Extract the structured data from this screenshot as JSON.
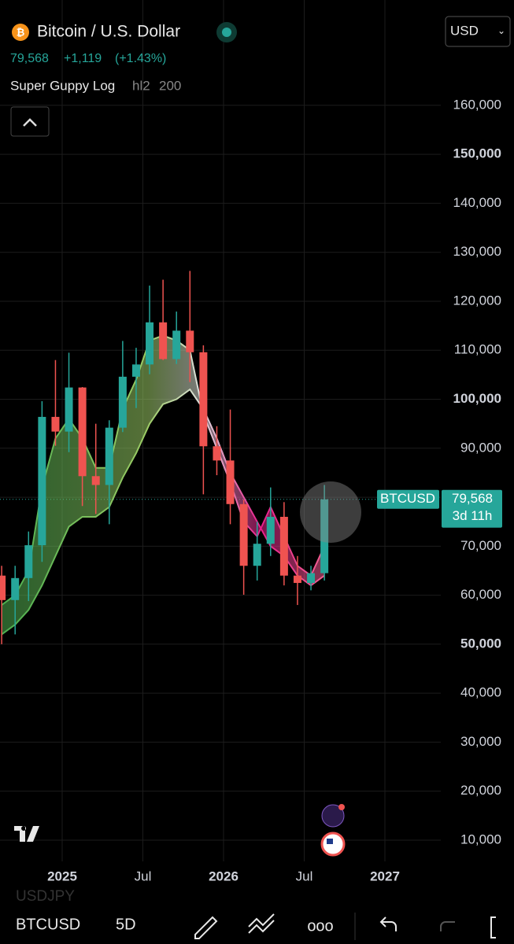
{
  "header": {
    "title": "Bitcoin / U.S. Dollar",
    "price": "79,568",
    "change": "+1,119",
    "change_pct": "(+1.43%)",
    "indicator": "Super Guppy Log",
    "indicator_source": "hl2",
    "indicator_length": "200",
    "currency": "USD"
  },
  "toolbar": {
    "symbol": "BTCUSD",
    "interval": "5D",
    "ghost_symbol": "USDJPY"
  },
  "chart_data": {
    "type": "candlestick",
    "x": [
      "2024-08",
      "2024-09",
      "2024-10",
      "2024-11",
      "2024-12",
      "2025-01",
      "2025-02",
      "2025-03",
      "2025-04",
      "2025-05",
      "2025-06",
      "2025-07",
      "2025-08",
      "2025-09",
      "2025-10",
      "2025-11",
      "2025-12",
      "2026-01",
      "2026-02",
      "2026-03",
      "2026-04",
      "2026-05",
      "2026-06",
      "2026-07",
      "2026-08"
    ],
    "open": [
      64000,
      59000,
      63500,
      70200,
      96400,
      93400,
      102400,
      84300,
      82500,
      94200,
      104600,
      107100,
      115700,
      108200,
      114000,
      109600,
      90400,
      87500,
      78600,
      66000,
      70500,
      76000,
      64000,
      62500,
      64500
    ],
    "high": [
      66000,
      66000,
      73000,
      99600,
      108000,
      109500,
      102500,
      95000,
      95700,
      111900,
      110500,
      123200,
      124400,
      117900,
      126200,
      111000,
      94500,
      97900,
      79500,
      75000,
      82000,
      79000,
      68000,
      66000,
      82500
    ],
    "low": [
      50000,
      52000,
      58800,
      66800,
      90500,
      89200,
      78200,
      76600,
      74500,
      93300,
      98200,
      105100,
      108000,
      107200,
      103500,
      80600,
      84500,
      74500,
      60100,
      63000,
      68000,
      62000,
      58000,
      61000,
      63000
    ],
    "close": [
      59000,
      63500,
      70200,
      96400,
      93400,
      102400,
      84300,
      82500,
      94200,
      104600,
      107100,
      115700,
      108200,
      114000,
      109600,
      90400,
      87500,
      78600,
      66000,
      70500,
      76000,
      64000,
      62500,
      64500,
      79568
    ],
    "up_color": "#26a69a",
    "down_color": "#ef5350",
    "guppy_fast": [
      58000,
      60000,
      65000,
      82000,
      92000,
      96000,
      92000,
      86000,
      86000,
      98000,
      104000,
      112000,
      113000,
      112000,
      110000,
      97000,
      90000,
      83000,
      75000,
      72000,
      78000,
      72000,
      66000,
      64000,
      70000
    ],
    "guppy_slow": [
      52000,
      54000,
      57000,
      62000,
      68000,
      74000,
      76000,
      76000,
      78000,
      84000,
      89000,
      95000,
      99000,
      100000,
      102000,
      98000,
      92000,
      85000,
      80000,
      75000,
      70000,
      68000,
      64000,
      62000,
      64000
    ],
    "last_price": {
      "value": 79568,
      "label": "79,568"
    },
    "last_symbol": "BTCUSD",
    "countdown": "3d 11h",
    "ylim": [
      5660,
      181500
    ],
    "yticks": [
      {
        "value": 10000,
        "label": "10,000"
      },
      {
        "value": 20000,
        "label": "20,000"
      },
      {
        "value": 30000,
        "label": "30,000"
      },
      {
        "value": 40000,
        "label": "40,000"
      },
      {
        "value": 50000,
        "label": "50,000"
      },
      {
        "value": 60000,
        "label": "60,000"
      },
      {
        "value": 70000,
        "label": "70,000"
      },
      {
        "value": 80000,
        "label": "80,000"
      },
      {
        "value": 90000,
        "label": "90,000"
      },
      {
        "value": 100000,
        "label": "100,000"
      },
      {
        "value": 110000,
        "label": "110,000"
      },
      {
        "value": 120000,
        "label": "120,000"
      },
      {
        "value": 130000,
        "label": "130,000"
      },
      {
        "value": 140000,
        "label": "140,000"
      },
      {
        "value": 150000,
        "label": "150,000"
      },
      {
        "value": 160000,
        "label": "160,000"
      }
    ],
    "xticks": [
      {
        "value": "2025-01",
        "label": "2025"
      },
      {
        "value": "2025-07",
        "label": "Jul"
      },
      {
        "value": "2026-01",
        "label": "2026"
      },
      {
        "value": "2026-07",
        "label": "Jul"
      },
      {
        "value": "2027-01",
        "label": "2027"
      }
    ],
    "grid": true
  }
}
